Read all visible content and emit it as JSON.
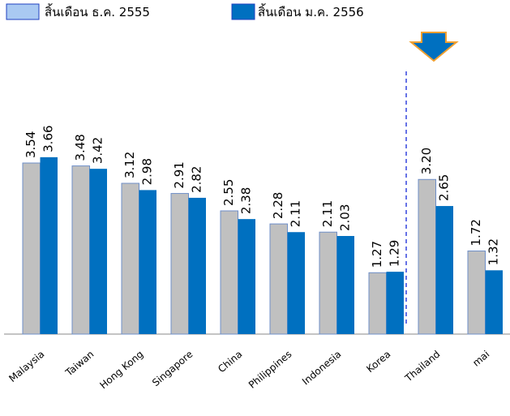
{
  "chart_data": {
    "type": "bar",
    "categories": [
      "Malaysia",
      "Taiwan",
      "Hong Kong",
      "Singapore",
      "China",
      "Philippines",
      "Indonesia",
      "Korea",
      "Thailand",
      "mai"
    ],
    "series": [
      {
        "name": "สิ้นเดือน ธ.ค. 2555",
        "color": "#c0c0c0",
        "legend_color": "#a9c9f2",
        "values": [
          3.54,
          3.48,
          3.12,
          2.91,
          2.55,
          2.28,
          2.11,
          1.27,
          3.2,
          1.72
        ],
        "value_labels": [
          "3.54",
          "3.48",
          "3.12",
          "2.91",
          "2.55",
          "2.28",
          "2.11",
          "1.27",
          "3.20",
          "1.72"
        ]
      },
      {
        "name": "สิ้นเดือน ม.ค. 2556",
        "color": "#0070c0",
        "values": [
          3.66,
          3.42,
          2.98,
          2.82,
          2.38,
          2.11,
          2.03,
          1.29,
          2.65,
          1.32
        ],
        "value_labels": [
          "3.66",
          "3.42",
          "2.98",
          "2.82",
          "2.38",
          "2.11",
          "2.03",
          "1.29",
          "2.65",
          "1.32"
        ]
      }
    ]
  }
}
